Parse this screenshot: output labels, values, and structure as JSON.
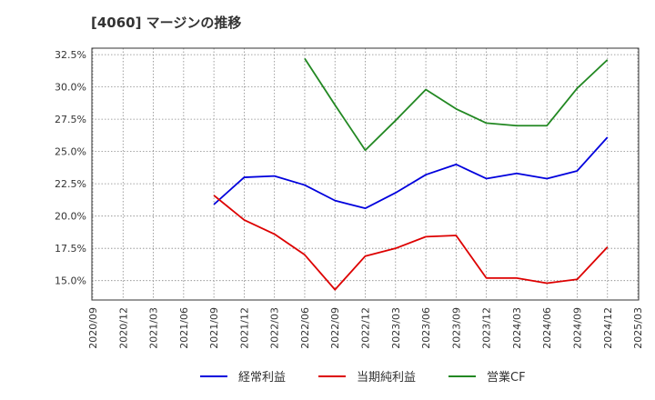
{
  "chart_data": {
    "type": "line",
    "title": "[4060]  マージンの推移",
    "xlabel": "",
    "ylabel": "",
    "ylim": [
      13.5,
      33.0
    ],
    "yticks": [
      15.0,
      17.5,
      20.0,
      22.5,
      25.0,
      27.5,
      30.0,
      32.5
    ],
    "ytick_labels": [
      "15.0%",
      "17.5%",
      "20.0%",
      "22.5%",
      "25.0%",
      "27.5%",
      "30.0%",
      "32.5%"
    ],
    "categories": [
      "2020/09",
      "2020/12",
      "2021/03",
      "2021/06",
      "2021/09",
      "2021/12",
      "2022/03",
      "2022/06",
      "2022/09",
      "2022/12",
      "2023/03",
      "2023/06",
      "2023/09",
      "2023/12",
      "2024/03",
      "2024/06",
      "2024/09",
      "2024/12",
      "2025/03"
    ],
    "grid": true,
    "legend_position": "bottom",
    "series": [
      {
        "name": "経常利益",
        "color": "#0000dd",
        "values": [
          null,
          null,
          null,
          null,
          20.9,
          23.0,
          23.1,
          22.4,
          21.2,
          20.6,
          21.8,
          23.2,
          24.0,
          22.9,
          23.3,
          22.9,
          23.5,
          26.1,
          null
        ]
      },
      {
        "name": "当期純利益",
        "color": "#dd0000",
        "values": [
          null,
          null,
          null,
          null,
          21.6,
          19.7,
          18.6,
          17.0,
          14.3,
          16.9,
          17.5,
          18.4,
          18.5,
          15.2,
          15.2,
          14.8,
          15.1,
          17.6,
          null
        ]
      },
      {
        "name": "営業CF",
        "color": "#228822",
        "values": [
          null,
          null,
          null,
          null,
          null,
          null,
          null,
          32.2,
          28.6,
          25.1,
          27.4,
          29.8,
          28.3,
          27.2,
          27.0,
          27.0,
          29.9,
          32.1,
          null
        ]
      }
    ]
  }
}
